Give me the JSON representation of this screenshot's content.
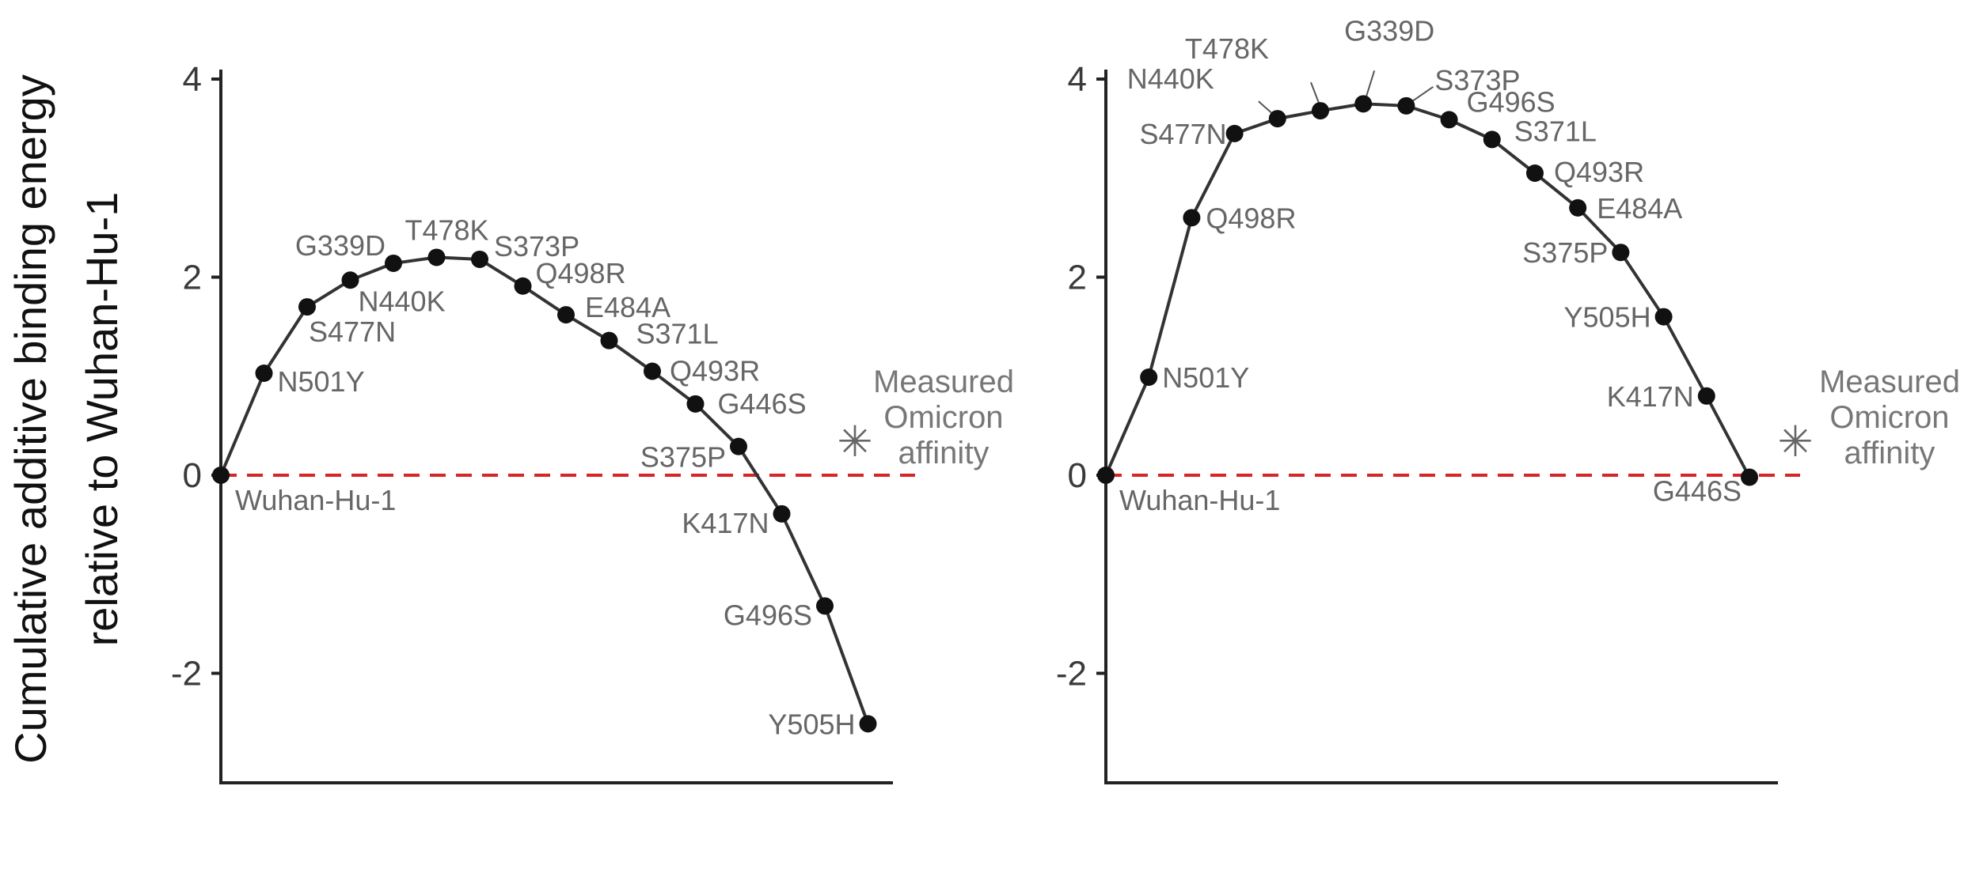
{
  "figure": {
    "ylabel_lines": [
      "Cumulative additive binding energy",
      "relative to Wuhan-Hu-1"
    ]
  },
  "chart_data": [
    {
      "type": "line",
      "xlabel": "",
      "ylabel": "Cumulative additive binding energy relative to Wuhan-Hu-1",
      "ylim": [
        -3.1,
        4.2
      ],
      "yticks": [
        -2,
        0,
        2,
        4
      ],
      "ytick_labels": [
        "-2",
        "0",
        "2",
        "4"
      ],
      "reference_line": {
        "y": 0,
        "style": "dashed",
        "color": "#d62728"
      },
      "colors": {
        "line": "#333333",
        "point": "#111111",
        "label": "#666666"
      },
      "points": [
        {
          "label": "Wuhan-Hu-1",
          "x": 0,
          "y": 0.0
        },
        {
          "label": "N501Y",
          "x": 1,
          "y": 1.03
        },
        {
          "label": "S477N",
          "x": 2,
          "y": 1.7
        },
        {
          "label": "N440K",
          "x": 3,
          "y": 1.97
        },
        {
          "label": "G339D",
          "x": 4,
          "y": 2.14
        },
        {
          "label": "T478K",
          "x": 5,
          "y": 2.2
        },
        {
          "label": "S373P",
          "x": 6,
          "y": 2.18
        },
        {
          "label": "Q498R",
          "x": 7,
          "y": 1.91
        },
        {
          "label": "E484A",
          "x": 8,
          "y": 1.62
        },
        {
          "label": "S371L",
          "x": 9,
          "y": 1.36
        },
        {
          "label": "Q493R",
          "x": 10,
          "y": 1.05
        },
        {
          "label": "G446S",
          "x": 11,
          "y": 0.72
        },
        {
          "label": "S375P",
          "x": 12,
          "y": 0.29
        },
        {
          "label": "K417N",
          "x": 13,
          "y": -0.39
        },
        {
          "label": "G496S",
          "x": 14,
          "y": -1.32
        },
        {
          "label": "Y505H",
          "x": 15,
          "y": -2.51
        }
      ],
      "measured": {
        "marker": "✳",
        "lines": [
          "Measured",
          "Omicron",
          "affinity"
        ],
        "y": 0.35
      }
    },
    {
      "type": "line",
      "xlabel": "",
      "ylabel": "",
      "ylim": [
        -3.1,
        4.2
      ],
      "yticks": [
        -2,
        0,
        2,
        4
      ],
      "ytick_labels": [
        "-2",
        "0",
        "2",
        "4"
      ],
      "reference_line": {
        "y": 0,
        "style": "dashed",
        "color": "#d62728"
      },
      "colors": {
        "line": "#333333",
        "point": "#111111",
        "label": "#666666"
      },
      "points": [
        {
          "label": "Wuhan-Hu-1",
          "x": 0,
          "y": 0.0
        },
        {
          "label": "N501Y",
          "x": 1,
          "y": 0.99
        },
        {
          "label": "Q498R",
          "x": 2,
          "y": 2.6
        },
        {
          "label": "S477N",
          "x": 3,
          "y": 3.45
        },
        {
          "label": "N440K",
          "x": 4,
          "y": 3.6
        },
        {
          "label": "T478K",
          "x": 5,
          "y": 3.68
        },
        {
          "label": "G339D",
          "x": 6,
          "y": 3.75
        },
        {
          "label": "S373P",
          "x": 7,
          "y": 3.73
        },
        {
          "label": "G496S",
          "x": 8,
          "y": 3.59
        },
        {
          "label": "S371L",
          "x": 9,
          "y": 3.39
        },
        {
          "label": "Q493R",
          "x": 10,
          "y": 3.05
        },
        {
          "label": "E484A",
          "x": 11,
          "y": 2.7
        },
        {
          "label": "S375P",
          "x": 12,
          "y": 2.25
        },
        {
          "label": "Y505H",
          "x": 13,
          "y": 1.6
        },
        {
          "label": "K417N",
          "x": 14,
          "y": 0.8
        },
        {
          "label": "G446S",
          "x": 15,
          "y": -0.02
        }
      ],
      "measured": {
        "marker": "✳",
        "lines": [
          "Measured",
          "Omicron",
          "affinity"
        ],
        "y": 0.35
      }
    }
  ]
}
